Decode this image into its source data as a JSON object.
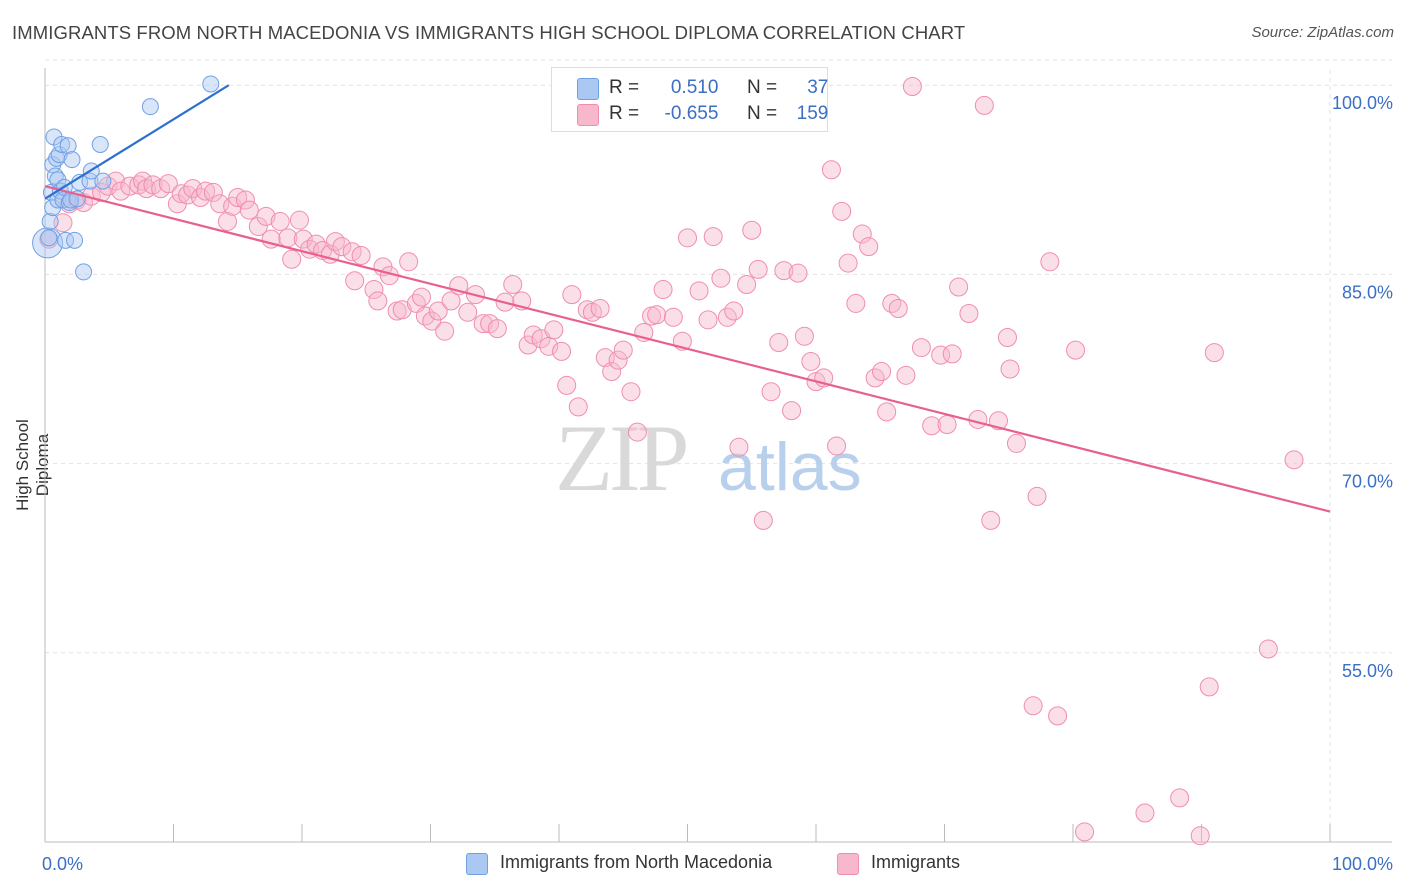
{
  "title": "IMMIGRANTS FROM NORTH MACEDONIA VS IMMIGRANTS HIGH SCHOOL DIPLOMA CORRELATION CHART",
  "source": "Source: ZipAtlas.com",
  "watermark": {
    "zip": "ZIP",
    "atlas": "atlas"
  },
  "legend": {
    "rows": [
      {
        "r_label": "R =",
        "r_value": "0.510",
        "n_label": "N =",
        "n_value": "37",
        "color": "#aac8f2"
      },
      {
        "r_label": "R =",
        "r_value": "-0.655",
        "n_label": "N =",
        "n_value": "159",
        "color": "#f7b8cc"
      }
    ]
  },
  "bottom_legend": [
    {
      "label": "Immigrants from North Macedonia",
      "color": "#aac8f2"
    },
    {
      "label": "Immigrants",
      "color": "#f7b8cc"
    }
  ],
  "chart_data": {
    "type": "scatter",
    "title": "IMMIGRANTS FROM NORTH MACEDONIA VS IMMIGRANTS HIGH SCHOOL DIPLOMA CORRELATION CHART",
    "xlabel": "",
    "ylabel": "High School Diploma",
    "xlim": [
      0,
      100
    ],
    "ylim": [
      40,
      102
    ],
    "x_tick_labels": [
      "0.0%",
      "100.0%"
    ],
    "y_ticks": [
      55,
      70,
      85,
      100
    ],
    "y_tick_labels": [
      "55.0%",
      "70.0%",
      "85.0%",
      "100.0%"
    ],
    "series": [
      {
        "name": "Immigrants from North Macedonia",
        "color": "#6fa1e6",
        "trend": {
          "x0": 0.0,
          "y0": 91.0,
          "x1": 14.3,
          "y1": 100.0
        },
        "points": [
          [
            0.3,
            87.9
          ],
          [
            0.4,
            89.2
          ],
          [
            0.5,
            91.5
          ],
          [
            0.6,
            90.3
          ],
          [
            0.6,
            93.7
          ],
          [
            0.7,
            95.9
          ],
          [
            0.8,
            92.8
          ],
          [
            0.9,
            94.2
          ],
          [
            1.0,
            90.9
          ],
          [
            1.0,
            92.5
          ],
          [
            1.1,
            94.5
          ],
          [
            1.2,
            91.6
          ],
          [
            1.3,
            95.3
          ],
          [
            1.4,
            90.9
          ],
          [
            1.5,
            91.9
          ],
          [
            1.6,
            87.7
          ],
          [
            1.8,
            95.2
          ],
          [
            1.9,
            90.7
          ],
          [
            2.0,
            90.9
          ],
          [
            2.1,
            94.1
          ],
          [
            2.3,
            87.7
          ],
          [
            2.5,
            91.0
          ],
          [
            2.7,
            92.3
          ],
          [
            3.0,
            85.2
          ],
          [
            3.5,
            92.4
          ],
          [
            3.6,
            93.2
          ],
          [
            4.3,
            95.3
          ],
          [
            4.5,
            92.4
          ],
          [
            8.2,
            98.3
          ],
          [
            12.9,
            100.1
          ]
        ],
        "big_points": [
          [
            0.2,
            87.5
          ]
        ]
      },
      {
        "name": "Immigrants",
        "color": "#f08db0",
        "trend": {
          "x0": 0.0,
          "y0": 92.0,
          "x1": 100.0,
          "y1": 66.2
        },
        "points": [
          [
            0.3,
            87.8
          ],
          [
            1.4,
            89.1
          ],
          [
            1.9,
            90.6
          ],
          [
            2.5,
            90.9
          ],
          [
            3.0,
            90.7
          ],
          [
            3.6,
            91.2
          ],
          [
            4.4,
            91.5
          ],
          [
            4.9,
            92.0
          ],
          [
            5.5,
            92.4
          ],
          [
            5.9,
            91.6
          ],
          [
            6.6,
            92.0
          ],
          [
            7.3,
            92.1
          ],
          [
            7.6,
            92.4
          ],
          [
            7.9,
            91.8
          ],
          [
            8.4,
            92.1
          ],
          [
            9.0,
            91.8
          ],
          [
            9.6,
            92.2
          ],
          [
            10.3,
            90.6
          ],
          [
            10.6,
            91.4
          ],
          [
            11.1,
            91.3
          ],
          [
            11.5,
            91.8
          ],
          [
            12.1,
            91.1
          ],
          [
            12.5,
            91.6
          ],
          [
            13.1,
            91.5
          ],
          [
            13.6,
            90.6
          ],
          [
            14.2,
            89.2
          ],
          [
            14.6,
            90.4
          ],
          [
            15.0,
            91.1
          ],
          [
            15.6,
            90.9
          ],
          [
            15.9,
            90.1
          ],
          [
            16.6,
            88.8
          ],
          [
            17.2,
            89.6
          ],
          [
            17.6,
            87.8
          ],
          [
            18.3,
            89.2
          ],
          [
            18.9,
            87.9
          ],
          [
            19.2,
            86.2
          ],
          [
            19.8,
            89.3
          ],
          [
            20.1,
            87.8
          ],
          [
            20.6,
            87.0
          ],
          [
            21.1,
            87.4
          ],
          [
            21.6,
            86.9
          ],
          [
            22.2,
            86.6
          ],
          [
            22.6,
            87.6
          ],
          [
            23.1,
            87.2
          ],
          [
            23.9,
            86.8
          ],
          [
            24.1,
            84.5
          ],
          [
            24.6,
            86.5
          ],
          [
            25.6,
            83.8
          ],
          [
            25.9,
            82.9
          ],
          [
            26.3,
            85.6
          ],
          [
            26.8,
            84.9
          ],
          [
            27.4,
            82.1
          ],
          [
            27.8,
            82.2
          ],
          [
            28.3,
            86.0
          ],
          [
            28.9,
            82.7
          ],
          [
            29.3,
            83.2
          ],
          [
            29.6,
            81.7
          ],
          [
            30.1,
            81.3
          ],
          [
            30.6,
            82.1
          ],
          [
            31.1,
            80.5
          ],
          [
            31.6,
            82.9
          ],
          [
            32.2,
            84.1
          ],
          [
            32.9,
            82.0
          ],
          [
            33.5,
            83.4
          ],
          [
            34.1,
            81.1
          ],
          [
            34.6,
            81.1
          ],
          [
            35.2,
            80.7
          ],
          [
            35.8,
            82.8
          ],
          [
            36.4,
            84.2
          ],
          [
            37.1,
            82.9
          ],
          [
            37.6,
            79.4
          ],
          [
            38.0,
            80.2
          ],
          [
            38.6,
            79.9
          ],
          [
            39.2,
            79.3
          ],
          [
            39.6,
            80.6
          ],
          [
            40.2,
            78.9
          ],
          [
            40.6,
            76.2
          ],
          [
            41.0,
            83.4
          ],
          [
            41.5,
            74.5
          ],
          [
            42.2,
            82.2
          ],
          [
            42.6,
            82.0
          ],
          [
            43.2,
            82.3
          ],
          [
            43.6,
            78.4
          ],
          [
            44.1,
            77.3
          ],
          [
            44.6,
            78.2
          ],
          [
            45.0,
            79.0
          ],
          [
            45.6,
            75.7
          ],
          [
            46.1,
            72.5
          ],
          [
            46.6,
            80.4
          ],
          [
            47.2,
            81.7
          ],
          [
            47.6,
            81.8
          ],
          [
            48.1,
            83.8
          ],
          [
            48.9,
            81.6
          ],
          [
            49.6,
            79.7
          ],
          [
            50.0,
            87.9
          ],
          [
            50.9,
            83.7
          ],
          [
            51.6,
            81.4
          ],
          [
            52.0,
            88.0
          ],
          [
            52.6,
            84.7
          ],
          [
            53.1,
            81.6
          ],
          [
            53.6,
            82.1
          ],
          [
            54.0,
            71.3
          ],
          [
            54.6,
            84.2
          ],
          [
            55.0,
            88.5
          ],
          [
            55.5,
            85.4
          ],
          [
            55.9,
            65.5
          ],
          [
            56.5,
            75.7
          ],
          [
            57.1,
            79.6
          ],
          [
            57.5,
            85.3
          ],
          [
            58.1,
            74.2
          ],
          [
            58.6,
            85.1
          ],
          [
            59.1,
            80.1
          ],
          [
            59.6,
            78.1
          ],
          [
            60.0,
            76.5
          ],
          [
            60.6,
            76.8
          ],
          [
            61.2,
            93.3
          ],
          [
            61.6,
            71.4
          ],
          [
            62.0,
            90.0
          ],
          [
            62.5,
            85.9
          ],
          [
            63.1,
            82.7
          ],
          [
            63.6,
            88.2
          ],
          [
            64.1,
            87.2
          ],
          [
            64.6,
            76.8
          ],
          [
            65.1,
            77.3
          ],
          [
            65.5,
            74.1
          ],
          [
            65.9,
            82.7
          ],
          [
            66.4,
            82.3
          ],
          [
            67.0,
            77.0
          ],
          [
            67.5,
            99.9
          ],
          [
            68.2,
            79.2
          ],
          [
            69.0,
            73.0
          ],
          [
            69.7,
            78.6
          ],
          [
            70.2,
            73.1
          ],
          [
            70.6,
            78.7
          ],
          [
            71.1,
            84.0
          ],
          [
            71.9,
            81.9
          ],
          [
            72.6,
            73.5
          ],
          [
            73.1,
            98.4
          ],
          [
            73.6,
            65.5
          ],
          [
            74.2,
            73.4
          ],
          [
            74.9,
            80.0
          ],
          [
            75.1,
            77.5
          ],
          [
            75.6,
            71.6
          ],
          [
            76.9,
            50.8
          ],
          [
            77.2,
            67.4
          ],
          [
            78.2,
            86.0
          ],
          [
            78.8,
            50.0
          ],
          [
            80.2,
            79.0
          ],
          [
            88.3,
            43.5
          ],
          [
            89.9,
            40.5
          ],
          [
            90.6,
            52.3
          ],
          [
            91.0,
            78.8
          ],
          [
            95.2,
            55.3
          ],
          [
            97.2,
            70.3
          ],
          [
            85.6,
            42.3
          ],
          [
            80.9,
            40.8
          ]
        ]
      }
    ]
  }
}
